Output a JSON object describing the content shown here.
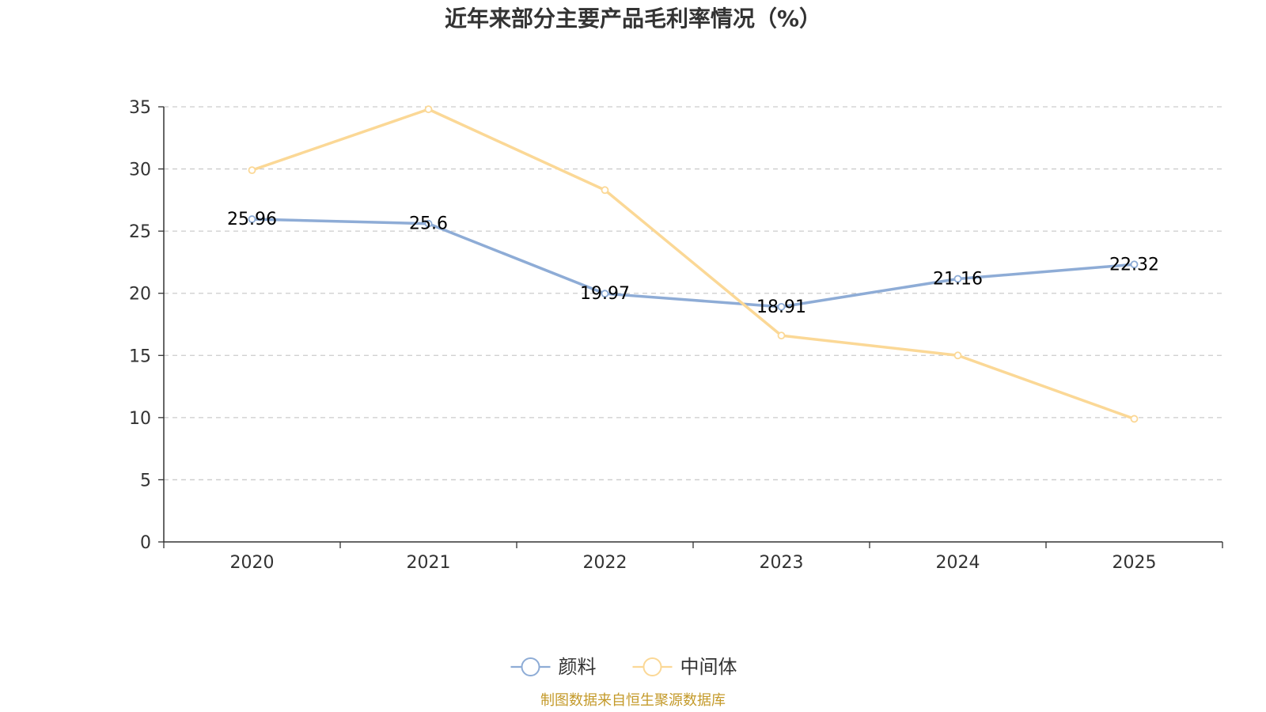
{
  "chart_data": {
    "type": "line",
    "title": "近年来部分主要产品毛利率情况（%）",
    "categories": [
      "2020",
      "2021",
      "2022",
      "2023",
      "2024",
      "2025"
    ],
    "ylim": [
      0,
      35
    ],
    "yticks": [
      0,
      5,
      10,
      15,
      20,
      25,
      30,
      35
    ],
    "grid": true,
    "legend_position": "bottom-center",
    "series": [
      {
        "name": "颜料",
        "color": "#8eacd6",
        "values": [
          25.96,
          25.6,
          19.97,
          18.91,
          21.16,
          22.32
        ],
        "show_labels": true
      },
      {
        "name": "中间体",
        "color": "#fbd896",
        "values": [
          29.9,
          34.8,
          28.3,
          16.6,
          15.0,
          9.9
        ],
        "show_labels": false
      }
    ],
    "xlabel": "",
    "ylabel": ""
  },
  "source_note": "制图数据来自恒生聚源数据库"
}
